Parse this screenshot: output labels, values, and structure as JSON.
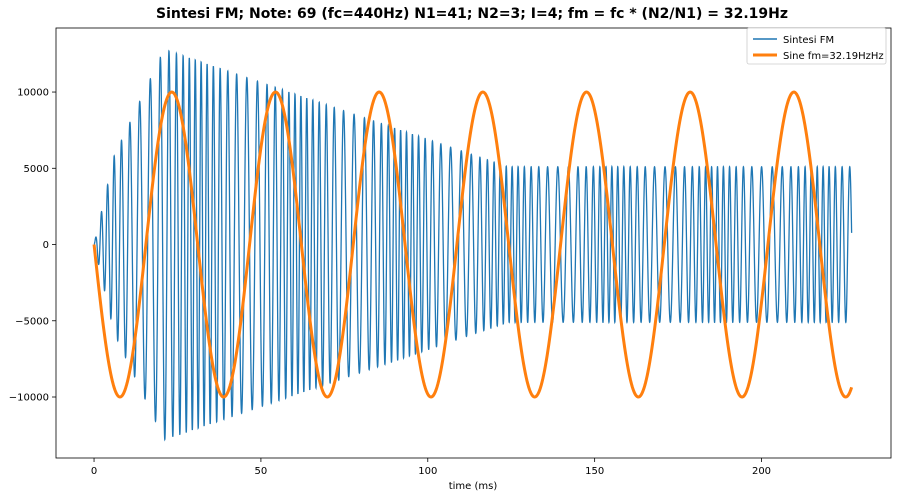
{
  "chart_data": {
    "type": "line",
    "title": "Sintesi FM; Note: 69 (fc=440Hz) N1=41; N2=3; I=4; fm = fc * (N2/N1) = 32.19Hz",
    "xlabel": "time (ms)",
    "ylabel": "",
    "xlim": [
      -11.4,
      238.8
    ],
    "ylim": [
      -14000,
      14200
    ],
    "xticks": [
      0,
      50,
      100,
      150,
      200
    ],
    "xtick_labels": [
      "0",
      "50",
      "100",
      "150",
      "200"
    ],
    "yticks": [
      -10000,
      -5000,
      0,
      5000,
      10000
    ],
    "ytick_labels": [
      "−10000",
      "−5000",
      "0",
      "5000",
      "10000"
    ],
    "grid": false,
    "legend_position": "top-right",
    "series": [
      {
        "name": "Sintesi FM",
        "color": "#1f77b4",
        "carrier_hz": 440,
        "modulator_hz": 32.19,
        "modulation_index": 4,
        "envelope_ms": [
          0,
          6,
          21,
          124,
          227
        ],
        "envelope_amplitude": [
          0,
          5800,
          12800,
          5100,
          5100
        ],
        "x_range_ms": [
          0,
          227
        ]
      },
      {
        "name": "Sine fm=32.19HzHz",
        "color": "#ff7f0e",
        "frequency_hz": 32.19,
        "amplitude": 10000,
        "phase": "negative sine",
        "x_range_ms": [
          0,
          227
        ]
      }
    ]
  }
}
